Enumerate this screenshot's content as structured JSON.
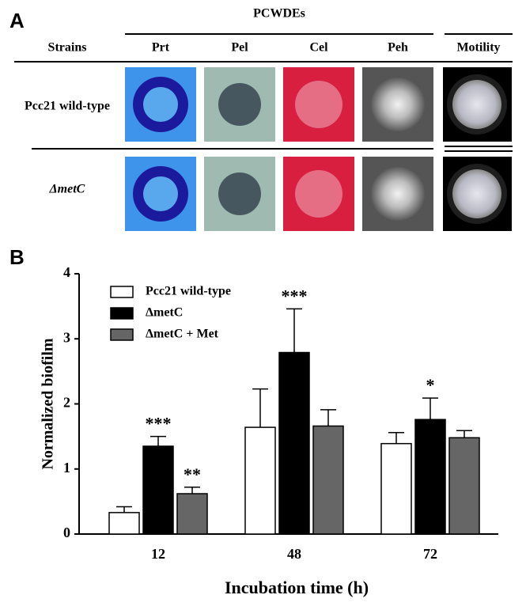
{
  "panel_a": {
    "label": "A",
    "group_header": "PCWDEs",
    "columns": [
      "Strains",
      "Prt",
      "Pel",
      "Cel",
      "Peh",
      "Motility"
    ],
    "rows": [
      "Pcc21 wild-type",
      "ΔmetC"
    ]
  },
  "chart_data": {
    "type": "bar",
    "panel_label": "B",
    "y_label": "Normalized biofilm",
    "x_label": "Incubation time (h)",
    "categories": [
      "12",
      "48",
      "72"
    ],
    "series": [
      {
        "name": "Pcc21 wild-type",
        "color": "#ffffff",
        "values": [
          0.33,
          1.64,
          1.39
        ],
        "errors": [
          0.09,
          0.59,
          0.17
        ],
        "annotations": [
          null,
          null,
          null
        ]
      },
      {
        "name": "ΔmetC",
        "color": "#000000",
        "values": [
          1.35,
          2.79,
          1.76
        ],
        "errors": [
          0.15,
          0.67,
          0.33
        ],
        "annotations": [
          "***",
          "***",
          "*"
        ]
      },
      {
        "name": "ΔmetC + Met",
        "color": "#666666",
        "values": [
          0.62,
          1.66,
          1.48
        ],
        "errors": [
          0.1,
          0.25,
          0.11
        ],
        "annotations": [
          "**",
          null,
          null
        ]
      }
    ],
    "ylim": [
      0,
      4
    ],
    "yticks": [
      0,
      1,
      2,
      3,
      4
    ],
    "legend": "upper left"
  }
}
